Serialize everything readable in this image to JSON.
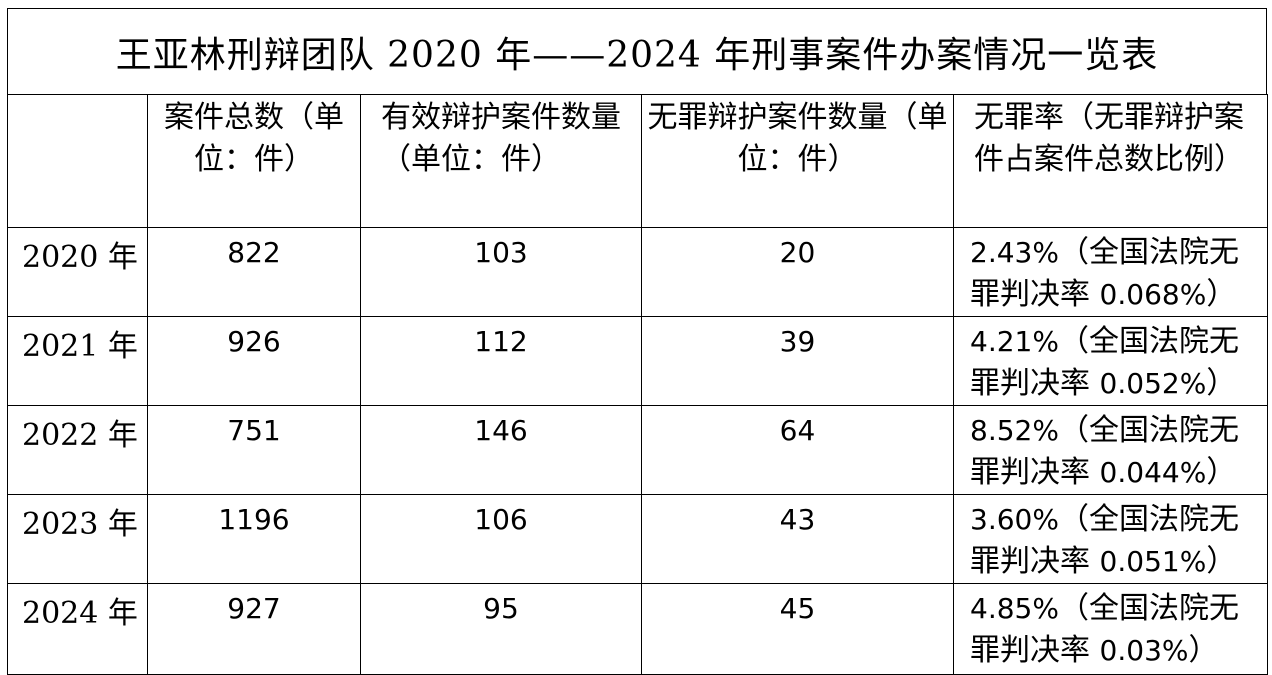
{
  "title": "王亚林刑辩团队 2020 年——2024 年刑事案件办案情况一览表",
  "headers": {
    "year": "",
    "total": "案件总数（单位：件）",
    "effective": "有效辩护案件数量（单位：件）",
    "innocent": "无罪辩护案件数量（单位：件）",
    "rate": "无罪率（无罪辩护案件占案件总数比例）"
  },
  "rows": [
    {
      "year": "2020 年",
      "total": "822",
      "effective": "103",
      "innocent": "20",
      "rate": "2.43%",
      "national_prefix": "（全国法院无罪判决率 ",
      "national": "0.068%",
      "national_suffix": "）"
    },
    {
      "year": "2021 年",
      "total": "926",
      "effective": "112",
      "innocent": "39",
      "rate": "4.21%",
      "national_prefix": "（全国法院无罪判决率 ",
      "national": "0.052%",
      "national_suffix": "）"
    },
    {
      "year": "2022 年",
      "total": "751",
      "effective": "146",
      "innocent": "64",
      "rate": "8.52%",
      "national_prefix": "（全国法院无罪判决率 ",
      "national": "0.044%",
      "national_suffix": "）"
    },
    {
      "year": "2023 年",
      "total": "1196",
      "effective": "106",
      "innocent": "43",
      "rate": "3.60%",
      "national_prefix": "（全国法院无罪判决率 ",
      "national": "0.051%",
      "national_suffix": "）"
    },
    {
      "year": "2024 年",
      "total": "927",
      "effective": "95",
      "innocent": "45",
      "rate": "4.85%",
      "national_prefix": "（全国法院无罪判决率 ",
      "national": "0.03%",
      "national_suffix": "）"
    }
  ]
}
